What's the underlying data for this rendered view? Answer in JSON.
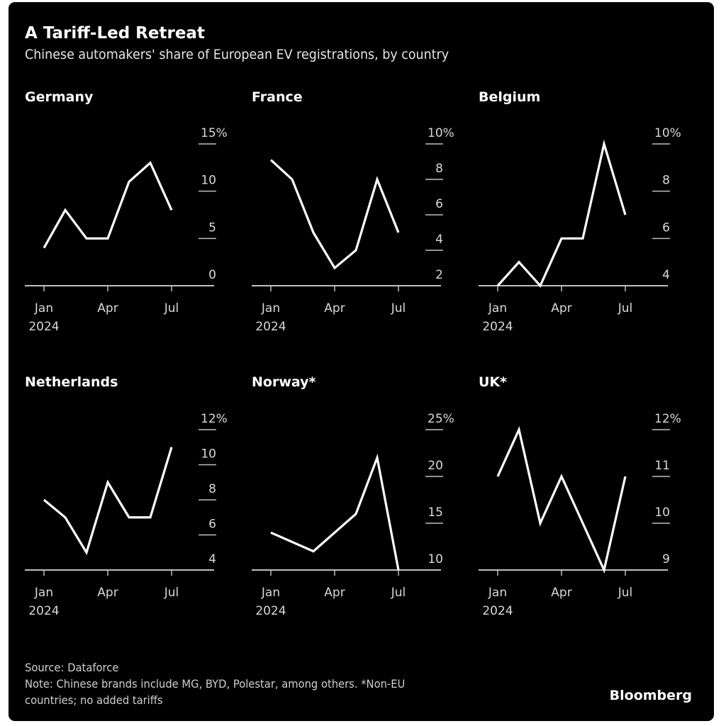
{
  "header": {
    "title": "A Tariff-Led Retreat",
    "subtitle": "Chinese automakers' share of European EV registrations, by country"
  },
  "footer": {
    "source": "Source: Dataforce",
    "note_line1": "Note: Chinese brands include MG, BYD, Polestar, among others. *Non-EU",
    "note_line2": "countries; no added tariffs",
    "brand": "Bloomberg"
  },
  "colors": {
    "background": "#000000",
    "line": "#ffffff",
    "axis": "#bfbfbf",
    "text": "#d8d8d8"
  },
  "chart_data": [
    {
      "type": "line",
      "title": "Germany",
      "x": [
        "Jan",
        "Feb",
        "Mar",
        "Apr",
        "May",
        "Jun",
        "Jul"
      ],
      "x_tick_labels": [
        "Jan",
        "Apr",
        "Jul"
      ],
      "x_year_label": "2024",
      "series": [
        {
          "name": "Chinese share",
          "values": [
            4,
            8,
            5,
            5,
            11,
            13,
            8
          ]
        }
      ],
      "ylim": [
        0,
        15
      ],
      "y_ticks": [
        0,
        5,
        10,
        15
      ],
      "y_tick_labels": [
        "0",
        "5",
        "10",
        "15%"
      ],
      "xlabel": "",
      "ylabel": "",
      "grid": false
    },
    {
      "type": "line",
      "title": "France",
      "x": [
        "Jan",
        "Feb",
        "Mar",
        "Apr",
        "May",
        "Jun",
        "Jul"
      ],
      "x_tick_labels": [
        "Jan",
        "Apr",
        "Jul"
      ],
      "x_year_label": "2024",
      "series": [
        {
          "name": "Chinese share",
          "values": [
            9.1,
            8,
            5,
            3,
            4,
            8,
            5
          ]
        }
      ],
      "ylim": [
        2,
        10
      ],
      "y_ticks": [
        2,
        4,
        6,
        8,
        10
      ],
      "y_tick_labels": [
        "2",
        "4",
        "6",
        "8",
        "10%"
      ],
      "xlabel": "",
      "ylabel": "",
      "grid": false
    },
    {
      "type": "line",
      "title": "Belgium",
      "x": [
        "Jan",
        "Feb",
        "Mar",
        "Apr",
        "May",
        "Jun",
        "Jul"
      ],
      "x_tick_labels": [
        "Jan",
        "Apr",
        "Jul"
      ],
      "x_year_label": "2024",
      "series": [
        {
          "name": "Chinese share",
          "values": [
            4,
            5,
            4,
            6,
            6,
            10,
            7
          ]
        }
      ],
      "ylim": [
        4,
        10
      ],
      "y_ticks": [
        4,
        6,
        8,
        10
      ],
      "y_tick_labels": [
        "4",
        "6",
        "8",
        "10%"
      ],
      "xlabel": "",
      "ylabel": "",
      "grid": false
    },
    {
      "type": "line",
      "title": "Netherlands",
      "x": [
        "Jan",
        "Feb",
        "Mar",
        "Apr",
        "May",
        "Jun",
        "Jul"
      ],
      "x_tick_labels": [
        "Jan",
        "Apr",
        "Jul"
      ],
      "x_year_label": "2024",
      "series": [
        {
          "name": "Chinese share",
          "values": [
            8,
            7,
            5,
            9,
            7,
            7,
            11
          ]
        }
      ],
      "ylim": [
        4,
        12
      ],
      "y_ticks": [
        4,
        6,
        8,
        10,
        12
      ],
      "y_tick_labels": [
        "4",
        "6",
        "8",
        "10",
        "12%"
      ],
      "xlabel": "",
      "ylabel": "",
      "grid": false
    },
    {
      "type": "line",
      "title": "Norway*",
      "x": [
        "Jan",
        "Feb",
        "Mar",
        "Apr",
        "May",
        "Jun",
        "Jul"
      ],
      "x_tick_labels": [
        "Jan",
        "Apr",
        "Jul"
      ],
      "x_year_label": "2024",
      "series": [
        {
          "name": "Chinese share",
          "values": [
            14,
            13,
            12,
            14,
            16,
            22,
            10
          ]
        }
      ],
      "ylim": [
        10,
        25
      ],
      "y_ticks": [
        10,
        15,
        20,
        25
      ],
      "y_tick_labels": [
        "10",
        "15",
        "20",
        "25%"
      ],
      "xlabel": "",
      "ylabel": "",
      "grid": false
    },
    {
      "type": "line",
      "title": "UK*",
      "x": [
        "Jan",
        "Feb",
        "Mar",
        "Apr",
        "May",
        "Jun",
        "Jul"
      ],
      "x_tick_labels": [
        "Jan",
        "Apr",
        "Jul"
      ],
      "x_year_label": "2024",
      "series": [
        {
          "name": "Chinese share",
          "values": [
            11,
            12,
            10,
            11,
            10,
            9,
            11
          ]
        }
      ],
      "ylim": [
        9,
        12
      ],
      "y_ticks": [
        9,
        10,
        11,
        12
      ],
      "y_tick_labels": [
        "9",
        "10",
        "11",
        "12%"
      ],
      "xlabel": "",
      "ylabel": "",
      "grid": false
    }
  ]
}
